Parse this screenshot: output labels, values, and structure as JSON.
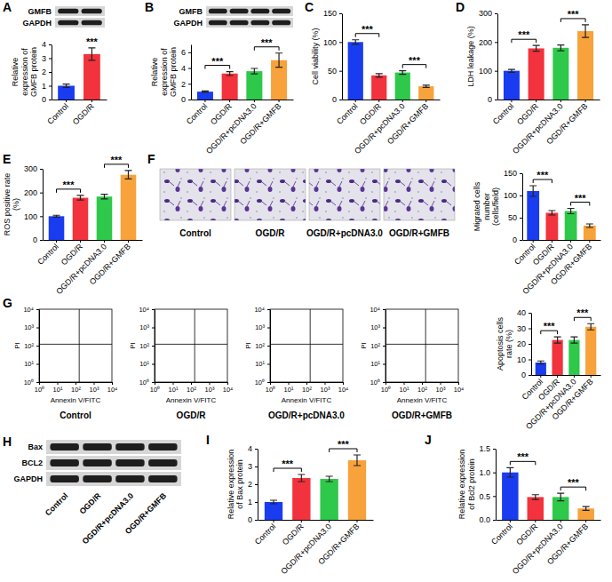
{
  "chart_data": [
    {
      "type": "bar",
      "panel": "A",
      "categories": [
        "Control",
        "OGD/R"
      ],
      "values": [
        1.0,
        3.3
      ],
      "errors": [
        0.12,
        0.45
      ],
      "colors": [
        "#1a3cf0",
        "#f2323c"
      ],
      "y_label": "Relative expression of GMFB protein",
      "ylim": [
        0,
        4
      ],
      "yticks": [
        0,
        1,
        2,
        3,
        4
      ],
      "annotations": [
        {
          "over": "OGD/R",
          "text": "***"
        }
      ]
    },
    {
      "type": "bar",
      "panel": "B",
      "categories": [
        "Control",
        "OGD/R",
        "OGD/R+pcDNA3.0",
        "OGD/R+GMFB"
      ],
      "values": [
        1.0,
        3.3,
        3.6,
        5.0
      ],
      "errors": [
        0.08,
        0.25,
        0.35,
        0.9
      ],
      "colors": [
        "#1a3cf0",
        "#f2323c",
        "#2ec84a",
        "#f7a23b"
      ],
      "y_label": "Relative expression of GMFB protein",
      "ylim": [
        0,
        7
      ],
      "yticks": [
        0,
        2,
        4,
        6
      ],
      "annotations": [
        {
          "pair": [
            "Control",
            "OGD/R"
          ],
          "text": "***"
        },
        {
          "pair": [
            "OGD/R+pcDNA3.0",
            "OGD/R+GMFB"
          ],
          "text": "***"
        }
      ]
    },
    {
      "type": "bar",
      "panel": "C",
      "categories": [
        "Control",
        "OGD/R",
        "OGD/R+pcDNA3.0",
        "OGD/R+GMFB"
      ],
      "values": [
        100,
        42,
        47,
        23
      ],
      "errors": [
        4,
        3,
        3,
        2
      ],
      "colors": [
        "#1a3cf0",
        "#f2323c",
        "#2ec84a",
        "#f7a23b"
      ],
      "y_label": "Cell viability (%)",
      "ylim": [
        0,
        150
      ],
      "yticks": [
        0,
        50,
        100,
        150
      ],
      "annotations": [
        {
          "pair": [
            "Control",
            "OGD/R"
          ],
          "text": "***"
        },
        {
          "pair": [
            "OGD/R+pcDNA3.0",
            "OGD/R+GMFB"
          ],
          "text": "***"
        }
      ]
    },
    {
      "type": "bar",
      "panel": "D",
      "categories": [
        "Control",
        "OGD/R",
        "OGD/R+pcDNA3.0",
        "OGD/R+GMFB"
      ],
      "values": [
        100,
        178,
        180,
        238
      ],
      "errors": [
        5,
        10,
        10,
        22
      ],
      "colors": [
        "#1a3cf0",
        "#f2323c",
        "#2ec84a",
        "#f7a23b"
      ],
      "y_label": "LDH leakage (%)",
      "ylim": [
        0,
        300
      ],
      "yticks": [
        0,
        100,
        200,
        300
      ],
      "annotations": [
        {
          "pair": [
            "Control",
            "OGD/R"
          ],
          "text": "***"
        },
        {
          "pair": [
            "OGD/R+pcDNA3.0",
            "OGD/R+GMFB"
          ],
          "text": "***"
        }
      ]
    },
    {
      "type": "bar",
      "panel": "E",
      "categories": [
        "Control",
        "OGD/R",
        "OGD/R+pcDNA3.0",
        "OGD/R+GMFB"
      ],
      "values": [
        100,
        178,
        183,
        275
      ],
      "errors": [
        4,
        10,
        10,
        18
      ],
      "colors": [
        "#1a3cf0",
        "#f2323c",
        "#2ec84a",
        "#f7a23b"
      ],
      "y_label": "ROS positive rate (%)",
      "ylim": [
        0,
        300
      ],
      "yticks": [
        0,
        100,
        200,
        300
      ],
      "annotations": [
        {
          "pair": [
            "Control",
            "OGD/R"
          ],
          "text": "***"
        },
        {
          "pair": [
            "OGD/R+pcDNA3.0",
            "OGD/R+GMFB"
          ],
          "text": "***"
        }
      ]
    },
    {
      "type": "bar",
      "categories": [
        "Control",
        "OGD/R",
        "OGD/R+pcDNA3.0",
        "OGD/R+GMFB"
      ],
      "values": [
        110,
        61,
        65,
        32
      ],
      "errors": [
        12,
        5,
        6,
        4
      ],
      "colors": [
        "#1a3cf0",
        "#f2323c",
        "#2ec84a",
        "#f7a23b"
      ],
      "y_label": "Migrated cells number (cells/field)",
      "ylim": [
        0,
        150
      ],
      "yticks": [
        0,
        50,
        100,
        150
      ],
      "annotations": [
        {
          "pair": [
            "Control",
            "OGD/R"
          ],
          "text": "***"
        },
        {
          "pair": [
            "OGD/R+pcDNA3.0",
            "OGD/R+GMFB"
          ],
          "text": "***"
        }
      ]
    },
    {
      "type": "bar",
      "categories": [
        "Control",
        "OGD/R",
        "OGD/R+pcDNA3.0",
        "OGD/R+GMFB"
      ],
      "values": [
        8,
        22.5,
        22.5,
        31
      ],
      "errors": [
        1,
        2,
        2,
        2
      ],
      "colors": [
        "#1a3cf0",
        "#f2323c",
        "#2ec84a",
        "#f7a23b"
      ],
      "y_label": "Apoptosis cells rate (%)",
      "ylim": [
        0,
        40
      ],
      "yticks": [
        0,
        10,
        20,
        30,
        40
      ],
      "annotations": [
        {
          "pair": [
            "Control",
            "OGD/R"
          ],
          "text": "***"
        },
        {
          "pair": [
            "OGD/R+pcDNA3.0",
            "OGD/R+GMFB"
          ],
          "text": "***"
        }
      ]
    },
    {
      "type": "bar",
      "panel": "I",
      "categories": [
        "Control",
        "OGD/R",
        "OGD/R+pcDNA3.0",
        "OGD/R+GMFB"
      ],
      "values": [
        1.0,
        2.35,
        2.3,
        3.35
      ],
      "errors": [
        0.1,
        0.2,
        0.15,
        0.3
      ],
      "colors": [
        "#1a3cf0",
        "#f2323c",
        "#2ec84a",
        "#f7a23b"
      ],
      "y_label": "Relative expression of Bax protein",
      "ylim": [
        0,
        4
      ],
      "yticks": [
        0,
        1,
        2,
        3,
        4
      ],
      "annotations": [
        {
          "pair": [
            "Control",
            "OGD/R"
          ],
          "text": "***"
        },
        {
          "pair": [
            "OGD/R+pcDNA3.0",
            "OGD/R+GMFB"
          ],
          "text": "***"
        }
      ]
    },
    {
      "type": "bar",
      "panel": "J",
      "categories": [
        "Control",
        "OGD/R",
        "OGD/R+pcDNA3.0",
        "OGD/R+GMFB"
      ],
      "values": [
        1.0,
        0.48,
        0.48,
        0.24
      ],
      "errors": [
        0.1,
        0.05,
        0.08,
        0.04
      ],
      "colors": [
        "#1a3cf0",
        "#f2323c",
        "#2ec84a",
        "#f7a23b"
      ],
      "y_label": "Relative expression of Bcl2 protein",
      "ylim": [
        0,
        1.5
      ],
      "yticks": [
        {
          "value": 0,
          "label": "0.0"
        },
        0.5,
        {
          "value": 1,
          "label": "1.0"
        },
        1.5
      ],
      "annotations": [
        {
          "pair": [
            "Control",
            "OGD/R"
          ],
          "text": "***"
        },
        {
          "pair": [
            "OGD/R+pcDNA3.0",
            "OGD/R+GMFB"
          ],
          "text": "***"
        }
      ]
    }
  ],
  "blots": [
    {
      "bands": [
        "GMFB",
        "GAPDH"
      ],
      "lanes": 2
    },
    {
      "bands": [
        "GMFB",
        "GAPDH"
      ],
      "lanes": 4
    },
    {
      "panel": "H",
      "bands": [
        "Bax",
        "BCL2",
        "GAPDH"
      ],
      "lane_labels": [
        "Control",
        "OGD/R",
        "OGD/R+pcDNA3.0",
        "OGD/R+GMFB"
      ]
    }
  ],
  "images": {
    "panel": "F",
    "labels": [
      "Control",
      "OGD/R",
      "OGD/R+pcDNA3.0",
      "OGD/R+GMFB"
    ]
  },
  "flow_plots": {
    "panel": "G",
    "type": "scatter",
    "log": true,
    "x_label": "Annexin V/FITC",
    "y_label": "PI",
    "groups": [
      "Control",
      "OGD/R",
      "OGD/R+pcDNA3.0",
      "OGD/R+GMFB"
    ],
    "xlim": [
      1,
      10000
    ],
    "ylim": [
      1,
      10000
    ],
    "xticks": [
      {
        "value": 1,
        "label": "10⁰"
      },
      {
        "value": 10,
        "label": "10¹"
      },
      {
        "value": 100,
        "label": "10²"
      },
      {
        "value": 1000,
        "label": "10³"
      },
      {
        "value": 10000,
        "label": "10⁴"
      }
    ],
    "yticks": [
      {
        "value": 1,
        "label": "10⁰"
      },
      {
        "value": 10,
        "label": "10¹"
      },
      {
        "value": 100,
        "label": "10²"
      },
      {
        "value": 1000,
        "label": "10³"
      },
      {
        "value": 10000,
        "label": "10⁴"
      }
    ],
    "quadrant_x": 160,
    "quadrant_y": 120
  }
}
